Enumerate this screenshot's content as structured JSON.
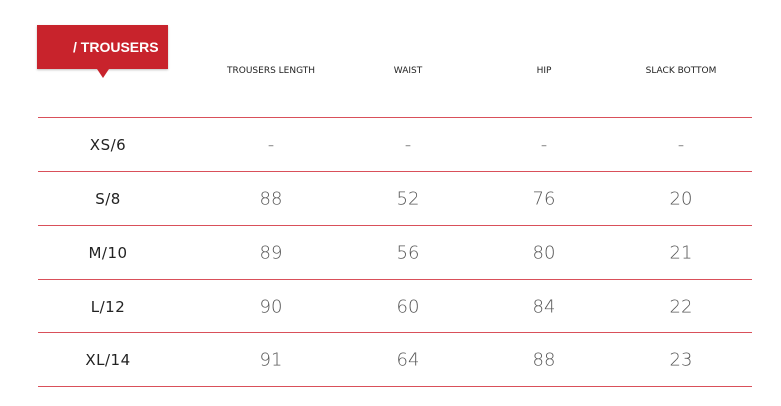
{
  "title": "/ TROUSERS",
  "accent": "#c8232c",
  "columns": [
    "TROUSERS LENGTH",
    "WAIST",
    "HIP",
    "SLACK BOTTOM"
  ],
  "rows": [
    {
      "size": "XS/6",
      "values": [
        "-",
        "-",
        "-",
        "-"
      ]
    },
    {
      "size": "S/8",
      "values": [
        "88",
        "52",
        "76",
        "20"
      ]
    },
    {
      "size": "M/10",
      "values": [
        "89",
        "56",
        "80",
        "21"
      ]
    },
    {
      "size": "L/12",
      "values": [
        "90",
        "60",
        "84",
        "22"
      ]
    },
    {
      "size": "XL/14",
      "values": [
        "91",
        "64",
        "88",
        "23"
      ]
    }
  ]
}
